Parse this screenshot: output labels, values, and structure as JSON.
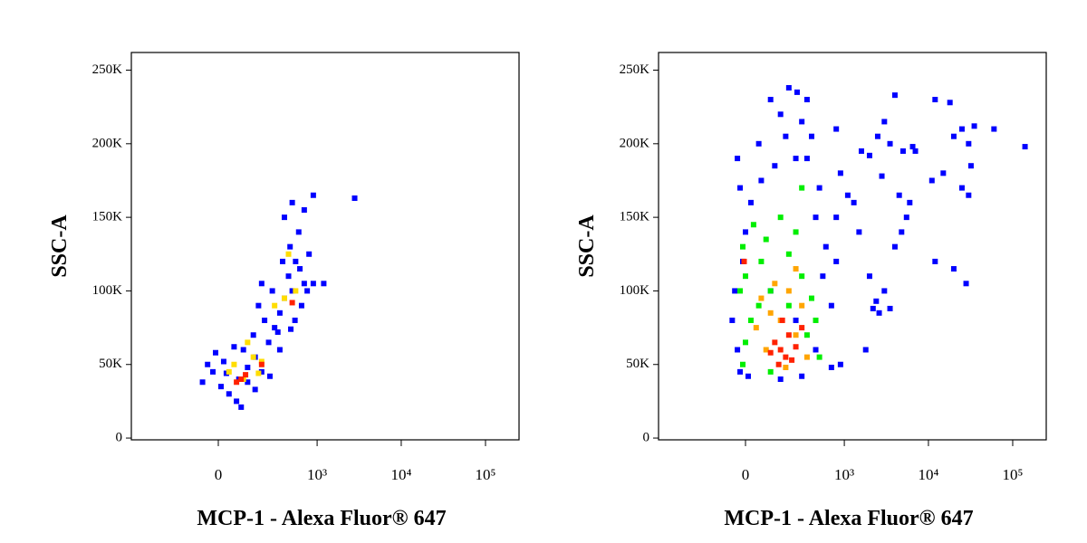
{
  "chart_data": [
    {
      "type": "scatter",
      "xlabel": "MCP-1 - Alexa Fluor® 647",
      "ylabel": "SSC-A",
      "xscale": "biexponential",
      "xlim": [
        -720,
        250000
      ],
      "ylim": [
        -1200,
        262000
      ],
      "xticks": [
        0,
        {
          "value": 1000,
          "label": "10³"
        },
        {
          "value": 10000,
          "label": "10⁴"
        },
        {
          "value": 100000,
          "label": "10⁵"
        }
      ],
      "yticks": [
        0,
        {
          "value": 50000,
          "label": "50K"
        },
        {
          "value": 100000,
          "label": "100K"
        },
        {
          "value": 150000,
          "label": "150K"
        },
        {
          "value": 200000,
          "label": "200K"
        },
        {
          "value": 250000,
          "label": "250K"
        }
      ],
      "series": [
        {
          "color": "#0000ff",
          "x": [
            -20,
            -60,
            10,
            40,
            80,
            120,
            160,
            20,
            -40,
            100,
            200,
            60,
            150,
            250,
            300,
            220,
            180,
            350,
            400,
            450,
            500,
            550,
            620,
            700,
            800,
            900,
            600,
            500,
            400,
            700,
            1200,
            900,
            2800,
            330,
            280,
            120,
            70,
            90,
            260,
            540,
            650,
            470,
            380,
            30,
            -10,
            160,
            200,
            480,
            760,
            350
          ],
          "values": [
            45000,
            38000,
            35000,
            30000,
            40000,
            48000,
            55000,
            52000,
            50000,
            60000,
            45000,
            62000,
            70000,
            65000,
            75000,
            80000,
            90000,
            85000,
            95000,
            110000,
            100000,
            120000,
            115000,
            105000,
            125000,
            105000,
            140000,
            160000,
            150000,
            155000,
            105000,
            165000,
            163000,
            72000,
            100000,
            38000,
            25000,
            21000,
            42000,
            80000,
            90000,
            130000,
            120000,
            44000,
            58000,
            33000,
            105000,
            74000,
            100000,
            60000
          ]
        },
        {
          "color": "#ffdd00",
          "x": [
            60,
            100,
            150,
            200,
            40,
            400,
            550,
            300,
            450,
            120,
            180
          ],
          "values": [
            50000,
            40000,
            55000,
            52000,
            45000,
            95000,
            100000,
            90000,
            125000,
            65000,
            44000
          ]
        },
        {
          "color": "#ff2200",
          "x": [
            90,
            110,
            70,
            200,
            500
          ],
          "values": [
            40000,
            43000,
            38000,
            50000,
            92000
          ]
        }
      ]
    },
    {
      "type": "scatter",
      "xlabel": "MCP-1 - Alexa Fluor® 647",
      "ylabel": "SSC-A",
      "xscale": "biexponential",
      "xlim": [
        -720,
        250000
      ],
      "ylim": [
        -1200,
        262000
      ],
      "xticks": [
        0,
        {
          "value": 1000,
          "label": "10³"
        },
        {
          "value": 10000,
          "label": "10⁴"
        },
        {
          "value": 100000,
          "label": "10⁵"
        }
      ],
      "yticks": [
        0,
        {
          "value": 50000,
          "label": "50K"
        },
        {
          "value": 100000,
          "label": "100K"
        },
        {
          "value": 150000,
          "label": "150K"
        },
        {
          "value": 200000,
          "label": "200K"
        },
        {
          "value": 250000,
          "label": "250K"
        }
      ],
      "series": [
        {
          "color": "#0000ff",
          "x": [
            -30,
            -20,
            0,
            -10,
            -40,
            20,
            50,
            100,
            150,
            200,
            260,
            300,
            350,
            400,
            500,
            450,
            600,
            550,
            700,
            800,
            900,
            1100,
            1300,
            1500,
            2000,
            2200,
            2400,
            1800,
            900,
            700,
            -20,
            -50,
            -30,
            10,
            150,
            300,
            120,
            60,
            250,
            350,
            180,
            2500,
            3000,
            4000,
            3500,
            5000,
            4500,
            6000,
            5500,
            4800,
            4000,
            3000,
            12000,
            18000,
            20000,
            25000,
            30000,
            32000,
            15000,
            11000,
            25000,
            30000,
            12000,
            20000,
            28000,
            60000,
            140000,
            35000,
            2600,
            800,
            1600,
            2000,
            6500,
            7000,
            2800,
            3500,
            800,
            100,
            250,
            450
          ],
          "values": [
            190000,
            170000,
            140000,
            120000,
            100000,
            160000,
            200000,
            230000,
            220000,
            238000,
            235000,
            215000,
            190000,
            205000,
            170000,
            150000,
            130000,
            110000,
            90000,
            150000,
            180000,
            165000,
            160000,
            140000,
            110000,
            88000,
            93000,
            60000,
            50000,
            48000,
            45000,
            80000,
            60000,
            42000,
            40000,
            42000,
            185000,
            175000,
            190000,
            230000,
            205000,
            205000,
            215000,
            233000,
            200000,
            195000,
            165000,
            160000,
            150000,
            140000,
            130000,
            100000,
            230000,
            228000,
            205000,
            210000,
            200000,
            185000,
            180000,
            175000,
            170000,
            165000,
            120000,
            115000,
            105000,
            210000,
            198000,
            212000,
            85000,
            120000,
            195000,
            192000,
            198000,
            195000,
            178000,
            88000,
            210000,
            100000,
            80000,
            60000
          ]
        },
        {
          "color": "#00ee00",
          "x": [
            -10,
            0,
            30,
            60,
            100,
            200,
            250,
            300,
            400,
            150,
            20,
            -20,
            350,
            450,
            100,
            -10,
            500,
            80,
            200,
            300,
            50,
            0
          ],
          "values": [
            130000,
            110000,
            145000,
            120000,
            100000,
            90000,
            140000,
            110000,
            95000,
            150000,
            80000,
            100000,
            70000,
            80000,
            45000,
            50000,
            55000,
            135000,
            125000,
            170000,
            90000,
            65000
          ]
        },
        {
          "color": "#ffa500",
          "x": [
            60,
            120,
            150,
            200,
            250,
            80,
            300,
            40,
            180,
            350,
            100,
            250
          ],
          "values": [
            95000,
            105000,
            80000,
            100000,
            70000,
            60000,
            90000,
            75000,
            48000,
            55000,
            85000,
            115000
          ]
        },
        {
          "color": "#ff2200",
          "x": [
            120,
            150,
            180,
            200,
            100,
            250,
            300,
            160,
            -5,
            140,
            220
          ],
          "values": [
            65000,
            60000,
            55000,
            70000,
            58000,
            62000,
            75000,
            80000,
            120000,
            50000,
            53000
          ]
        }
      ]
    }
  ]
}
